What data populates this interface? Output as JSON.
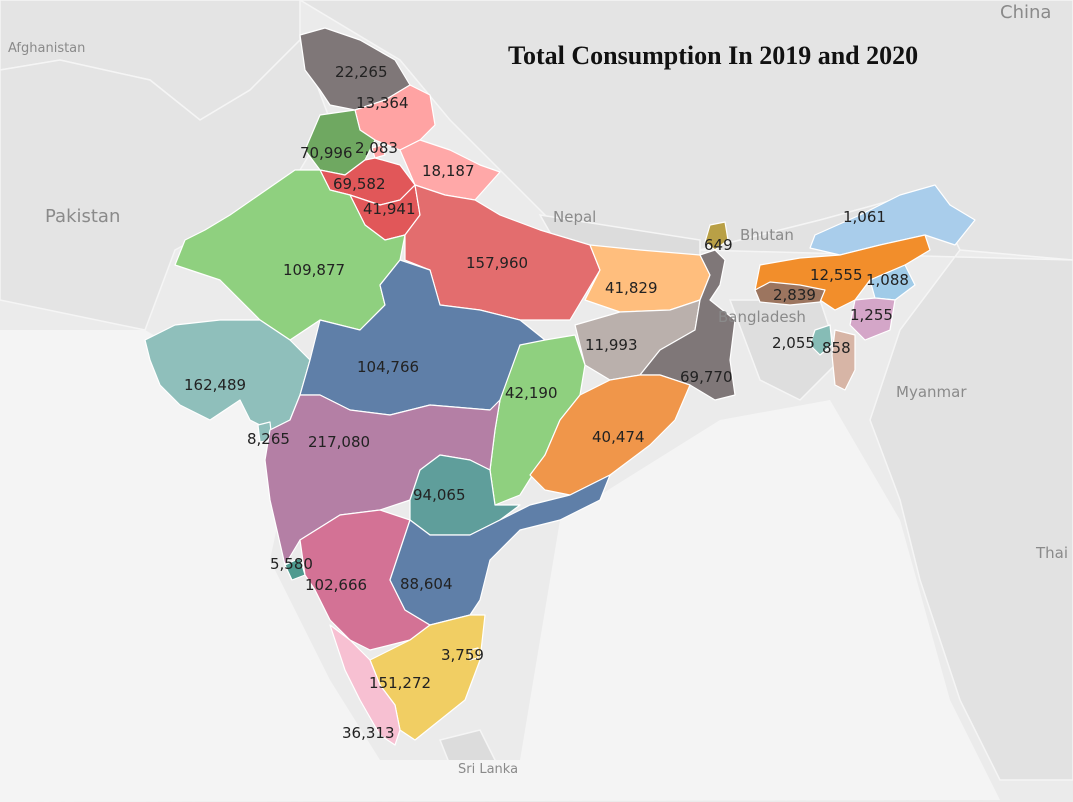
{
  "title": "Total Consumption In 2019 and 2020",
  "countries": [
    {
      "id": "afghanistan",
      "name": "Afghanistan"
    },
    {
      "id": "pakistan",
      "name": "Pakistan"
    },
    {
      "id": "nepal",
      "name": "Nepal"
    },
    {
      "id": "bhutan",
      "name": "Bhutan"
    },
    {
      "id": "bangladesh",
      "name": "Bangladesh"
    },
    {
      "id": "myanmar",
      "name": "Myanmar"
    },
    {
      "id": "china",
      "name": "China"
    },
    {
      "id": "thailand",
      "name": "Thai"
    },
    {
      "id": "srilanka",
      "name": "Sri Lanka"
    }
  ],
  "regions": [
    {
      "id": "jammu-kashmir",
      "value": "22,265",
      "color": "#7f7778"
    },
    {
      "id": "himachal-pradesh",
      "value": "13,364",
      "color": "#ffa3a3"
    },
    {
      "id": "punjab",
      "value": "70,996",
      "color": "#6fa861"
    },
    {
      "id": "chandigarh",
      "value": "2,083",
      "color": "#ffa3a3"
    },
    {
      "id": "uttarakhand",
      "value": "18,187",
      "color": "#ffa8a8"
    },
    {
      "id": "haryana",
      "value": "69,582",
      "color": "#e15759"
    },
    {
      "id": "delhi",
      "value": "41,941",
      "color": "#e15759"
    },
    {
      "id": "rajasthan",
      "value": "109,877",
      "color": "#8fd07f"
    },
    {
      "id": "uttar-pradesh",
      "value": "157,960",
      "color": "#e36d6e"
    },
    {
      "id": "sikkim",
      "value": "649",
      "color": "#b9a046"
    },
    {
      "id": "arunachal-pradesh",
      "value": "1,061",
      "color": "#a9cdeb"
    },
    {
      "id": "bihar",
      "value": "41,829",
      "color": "#ffbe7d"
    },
    {
      "id": "assam",
      "value": "12,555",
      "color": "#f28e2b"
    },
    {
      "id": "meghalaya",
      "value": "2,839",
      "color": "#9c755f"
    },
    {
      "id": "nagaland",
      "value": "1,088",
      "color": "#a0cbe8"
    },
    {
      "id": "manipur",
      "value": "1,255",
      "color": "#d4a6c8"
    },
    {
      "id": "tripura",
      "value": "2,055",
      "color": "#86bcb6"
    },
    {
      "id": "mizoram",
      "value": "858",
      "color": "#d7b5a6"
    },
    {
      "id": "gujarat",
      "value": "162,489",
      "color": "#8fbfbb"
    },
    {
      "id": "madhya-pradesh",
      "value": "104,766",
      "color": "#5f7fa8"
    },
    {
      "id": "jharkhand",
      "value": "11,993",
      "color": "#bab0ac"
    },
    {
      "id": "west-bengal",
      "value": "69,770",
      "color": "#7f7778"
    },
    {
      "id": "chhattisgarh",
      "value": "42,190",
      "color": "#8fd07f"
    },
    {
      "id": "odisha",
      "value": "40,474",
      "color": "#f0964a"
    },
    {
      "id": "dadra-nagar-haveli",
      "value": "8,265",
      "color": "#8fbfbb"
    },
    {
      "id": "maharashtra",
      "value": "217,080",
      "color": "#b47fa5"
    },
    {
      "id": "telangana",
      "value": "94,065",
      "color": "#5f9e9b"
    },
    {
      "id": "goa",
      "value": "5,580",
      "color": "#4e9a8f"
    },
    {
      "id": "karnataka",
      "value": "102,666",
      "color": "#d37295"
    },
    {
      "id": "andhra-pradesh",
      "value": "88,604",
      "color": "#5f7fa8"
    },
    {
      "id": "puducherry",
      "value": "3,759",
      "color": "#f1ce63"
    },
    {
      "id": "tamil-nadu",
      "value": "151,272",
      "color": "#f1ce63"
    },
    {
      "id": "kerala",
      "value": "36,313",
      "color": "#f7c0d2"
    }
  ],
  "colors": {
    "background": "#ffffff",
    "land": "#e4e4e4"
  }
}
